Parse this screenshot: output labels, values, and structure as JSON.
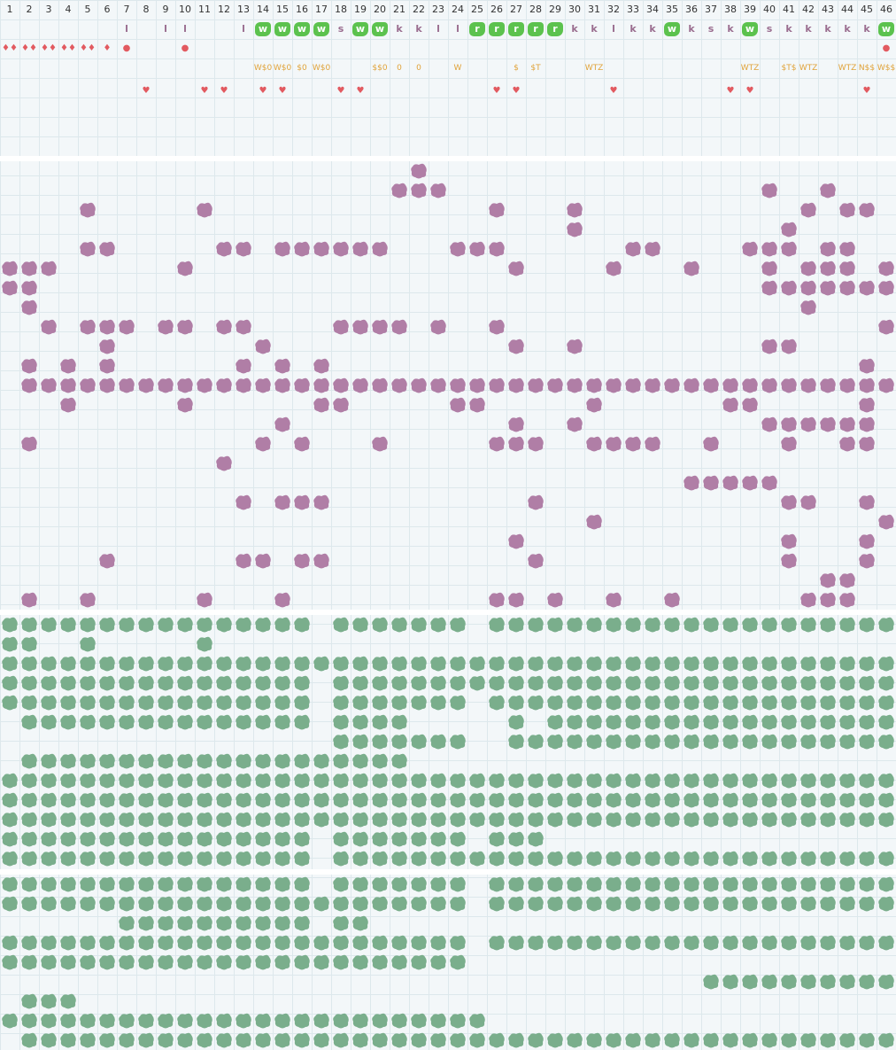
{
  "columns": [
    "1",
    "2",
    "3",
    "4",
    "5",
    "6",
    "7",
    "8",
    "9",
    "10",
    "11",
    "12",
    "13",
    "14",
    "15",
    "16",
    "17",
    "18",
    "19",
    "20",
    "21",
    "22",
    "23",
    "24",
    "25",
    "26",
    "27",
    "28",
    "29",
    "30",
    "31",
    "32",
    "33",
    "34",
    "35",
    "36",
    "37",
    "38",
    "39",
    "40",
    "41",
    "42",
    "43",
    "44",
    "45",
    "46"
  ],
  "colors": {
    "background": "#f3f7f9",
    "grid_line": "#dde8ec",
    "mauve_blob": "#b07ea6",
    "green_blob": "#7aae8c",
    "highlight_green": "#5cc24e",
    "letter": "#9a6d8f",
    "annotation_yellow": "#e0a33a",
    "red_marker": "#e25a60"
  },
  "marker_rows": {
    "letters": [
      {
        "col": 7,
        "t": "l",
        "hl": false
      },
      {
        "col": 9,
        "t": "l",
        "hl": false
      },
      {
        "col": 10,
        "t": "l",
        "hl": false
      },
      {
        "col": 13,
        "t": "l",
        "hl": false
      },
      {
        "col": 14,
        "t": "w",
        "hl": true
      },
      {
        "col": 15,
        "t": "w",
        "hl": true
      },
      {
        "col": 16,
        "t": "w",
        "hl": true
      },
      {
        "col": 17,
        "t": "w",
        "hl": true
      },
      {
        "col": 18,
        "t": "s",
        "hl": false
      },
      {
        "col": 19,
        "t": "w",
        "hl": true
      },
      {
        "col": 20,
        "t": "w",
        "hl": true
      },
      {
        "col": 21,
        "t": "k",
        "hl": false
      },
      {
        "col": 22,
        "t": "k",
        "hl": false
      },
      {
        "col": 23,
        "t": "l",
        "hl": false
      },
      {
        "col": 24,
        "t": "l",
        "hl": false
      },
      {
        "col": 25,
        "t": "r",
        "hl": true
      },
      {
        "col": 26,
        "t": "r",
        "hl": true
      },
      {
        "col": 27,
        "t": "r",
        "hl": true
      },
      {
        "col": 28,
        "t": "r",
        "hl": true
      },
      {
        "col": 29,
        "t": "r",
        "hl": true
      },
      {
        "col": 30,
        "t": "k",
        "hl": false
      },
      {
        "col": 31,
        "t": "k",
        "hl": false
      },
      {
        "col": 32,
        "t": "l",
        "hl": false
      },
      {
        "col": 33,
        "t": "k",
        "hl": false
      },
      {
        "col": 34,
        "t": "k",
        "hl": false
      },
      {
        "col": 35,
        "t": "w",
        "hl": true
      },
      {
        "col": 36,
        "t": "k",
        "hl": false
      },
      {
        "col": 37,
        "t": "s",
        "hl": false
      },
      {
        "col": 38,
        "t": "k",
        "hl": false
      },
      {
        "col": 39,
        "t": "w",
        "hl": true
      },
      {
        "col": 40,
        "t": "s",
        "hl": false
      },
      {
        "col": 41,
        "t": "k",
        "hl": false
      },
      {
        "col": 42,
        "t": "k",
        "hl": false
      },
      {
        "col": 43,
        "t": "k",
        "hl": false
      },
      {
        "col": 44,
        "t": "k",
        "hl": false
      },
      {
        "col": 45,
        "t": "k",
        "hl": false
      },
      {
        "col": 46,
        "t": "w",
        "hl": true
      }
    ],
    "red_row": [
      {
        "col": 1,
        "t": "♦♦"
      },
      {
        "col": 2,
        "t": "♦♦"
      },
      {
        "col": 3,
        "t": "♦♦"
      },
      {
        "col": 4,
        "t": "♦♦"
      },
      {
        "col": 5,
        "t": "♦♦"
      },
      {
        "col": 6,
        "t": "♦"
      },
      {
        "col": 7,
        "t": "●"
      },
      {
        "col": 10,
        "t": "●"
      },
      {
        "col": 46,
        "t": "●"
      }
    ],
    "yellow_row": [
      {
        "col": 14,
        "t": "W$0"
      },
      {
        "col": 15,
        "t": "W$0"
      },
      {
        "col": 16,
        "t": "$0"
      },
      {
        "col": 17,
        "t": "W$0"
      },
      {
        "col": 20,
        "t": "$$0"
      },
      {
        "col": 21,
        "t": "0"
      },
      {
        "col": 22,
        "t": "0"
      },
      {
        "col": 24,
        "t": "W"
      },
      {
        "col": 27,
        "t": "$"
      },
      {
        "col": 28,
        "t": "$T"
      },
      {
        "col": 31,
        "t": "WTZ"
      },
      {
        "col": 39,
        "t": "WTZ"
      },
      {
        "col": 41,
        "t": "$T$"
      },
      {
        "col": 42,
        "t": "WTZ"
      },
      {
        "col": 44,
        "t": "WTZ"
      },
      {
        "col": 45,
        "t": "N$$"
      },
      {
        "col": 46,
        "t": "W$$"
      }
    ],
    "heart_row": [
      {
        "col": 8,
        "t": "♥"
      },
      {
        "col": 11,
        "t": "♥"
      },
      {
        "col": 12,
        "t": "♥"
      },
      {
        "col": 14,
        "t": "♥"
      },
      {
        "col": 15,
        "t": "♥"
      },
      {
        "col": 18,
        "t": "♥"
      },
      {
        "col": 19,
        "t": "♥"
      },
      {
        "col": 26,
        "t": "♥"
      },
      {
        "col": 27,
        "t": "♥"
      },
      {
        "col": 32,
        "t": "♥"
      },
      {
        "col": 38,
        "t": "♥"
      },
      {
        "col": 39,
        "t": "♥"
      },
      {
        "col": 45,
        "t": "♥"
      }
    ]
  },
  "mauve_rows": [
    [
      22
    ],
    [
      21,
      22,
      23,
      40,
      43
    ],
    [
      5,
      11,
      26,
      30,
      42,
      44,
      45
    ],
    [
      30,
      41
    ],
    [
      5,
      6,
      12,
      13,
      15,
      16,
      17,
      18,
      19,
      20,
      24,
      25,
      26,
      33,
      34,
      39,
      40,
      41,
      43,
      44
    ],
    [
      1,
      2,
      3,
      10,
      27,
      32,
      36,
      40,
      42,
      43,
      44,
      46
    ],
    [
      1,
      2,
      40,
      41,
      42,
      43,
      44,
      45,
      46
    ],
    [
      2,
      42
    ],
    [
      3,
      5,
      6,
      7,
      9,
      10,
      12,
      13,
      18,
      19,
      20,
      21,
      23,
      26,
      46
    ],
    [
      6,
      14,
      27,
      30,
      40,
      41
    ],
    [
      2,
      4,
      6,
      13,
      15,
      17,
      45
    ],
    [
      2,
      3,
      4,
      5,
      6,
      7,
      8,
      9,
      10,
      11,
      12,
      13,
      14,
      15,
      16,
      17,
      18,
      19,
      20,
      21,
      22,
      23,
      24,
      25,
      26,
      27,
      28,
      29,
      30,
      31,
      32,
      33,
      34,
      35,
      36,
      37,
      38,
      39,
      40,
      41,
      42,
      43,
      44,
      45,
      46
    ],
    [
      4,
      10,
      17,
      18,
      24,
      25,
      31,
      38,
      39,
      45
    ],
    [
      15,
      27,
      30,
      40,
      41,
      42,
      43,
      44,
      45
    ],
    [
      2,
      14,
      16,
      20,
      26,
      27,
      28,
      31,
      32,
      33,
      34,
      37,
      41,
      44,
      45
    ],
    [
      12
    ],
    [
      36,
      37,
      38,
      39,
      40
    ],
    [
      13,
      15,
      16,
      17,
      28,
      41,
      42,
      45
    ],
    [
      31,
      46
    ],
    [
      27,
      41,
      45
    ],
    [
      6,
      13,
      14,
      16,
      17,
      28,
      41,
      45
    ],
    [
      43,
      44
    ],
    [
      2,
      5,
      11,
      15,
      26,
      27,
      29,
      32,
      35,
      42,
      43,
      44
    ]
  ],
  "green_rows_a": [
    "1-16,18-24,26-46",
    "1,2,5,11",
    "1-46",
    "1-16,18-46",
    "1-16,18-24,26-46",
    "2-16,18-21,27,29-46",
    "18-24,27-46",
    "2-21",
    "1-46",
    "1-46",
    "1-46",
    "1-16,18-24,26-28",
    "1-16,18-46"
  ],
  "green_rows_b": [
    "1-16,18-24,26-46",
    "1-24,26-46",
    "7-16,18,19",
    "1-24,26-46",
    "1-24",
    "37-46",
    "2,3,4",
    "1-25",
    "2-46"
  ]
}
